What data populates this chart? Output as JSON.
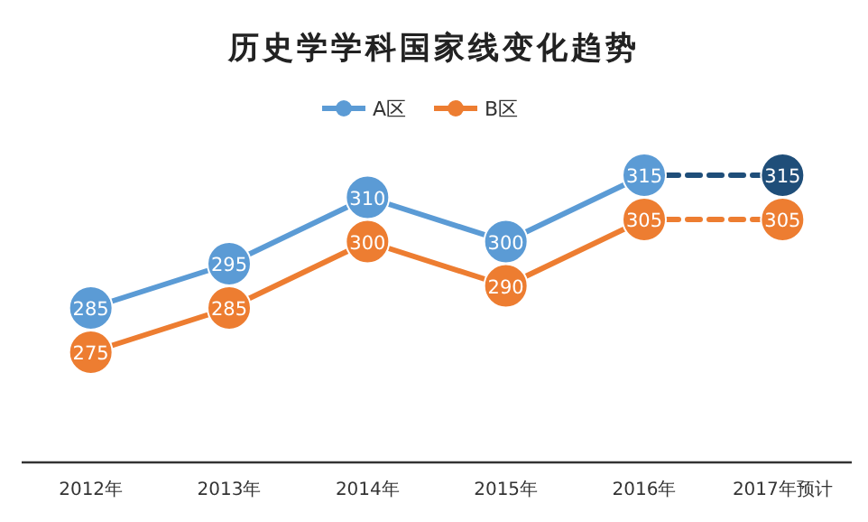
{
  "chart_data": {
    "type": "line",
    "title": "历史学学科国家线变化趋势",
    "categories": [
      "2012年",
      "2013年",
      "2014年",
      "2015年",
      "2016年",
      "2017年预计"
    ],
    "legend": "top",
    "grid": false,
    "marker": "circle",
    "series": [
      {
        "name": "A区",
        "color": "#5b9bd5",
        "line_style": "solid",
        "values": [
          285,
          295,
          310,
          300,
          315,
          null
        ],
        "value_labels": [
          "285",
          "295",
          "310",
          "300",
          "315",
          null
        ]
      },
      {
        "name": "B区",
        "color": "#ed7d31",
        "line_style": "solid",
        "values": [
          275,
          285,
          300,
          290,
          305,
          null
        ],
        "value_labels": [
          "275",
          "285",
          "300",
          "290",
          "305",
          null
        ]
      },
      {
        "color": "#1f4e79",
        "line_style": "dashed",
        "values": [
          null,
          null,
          null,
          null,
          315,
          315
        ],
        "value_labels": [
          null,
          null,
          null,
          null,
          null,
          "315"
        ]
      },
      {
        "color": "#ed7d31",
        "line_style": "dashed",
        "values": [
          null,
          null,
          null,
          null,
          305,
          305
        ],
        "value_labels": [
          null,
          null,
          null,
          null,
          null,
          "305"
        ]
      }
    ]
  }
}
